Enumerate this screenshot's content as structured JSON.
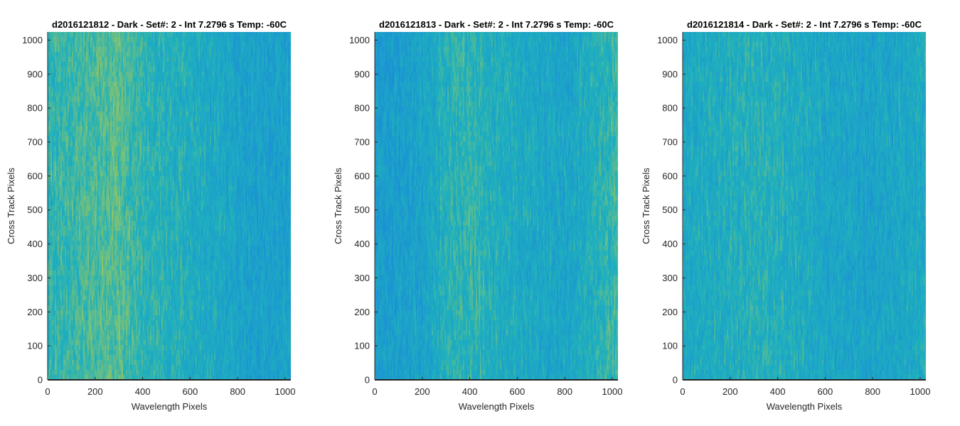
{
  "chart_data": [
    {
      "type": "heatmap",
      "title": "d2016121812 - Dark - Set#: 2 - Int 7.2796 s Temp: -60C",
      "xlabel": "Wavelength Pixels",
      "ylabel": "Cross Track Pixels",
      "xlim": [
        0,
        1024
      ],
      "ylim": [
        0,
        1024
      ],
      "xticks": [
        0,
        200,
        400,
        600,
        800,
        1000
      ],
      "yticks": [
        0,
        100,
        200,
        300,
        400,
        500,
        600,
        700,
        800,
        900,
        1000
      ],
      "colormap": "parula",
      "color_low": "#1a8fd6",
      "color_mid": "#1fb0bd",
      "color_high": "#9fc85c",
      "column_intensity": [
        [
          0,
          0.55
        ],
        [
          100,
          0.62
        ],
        [
          200,
          0.68
        ],
        [
          300,
          0.72
        ],
        [
          400,
          0.55
        ],
        [
          500,
          0.5
        ],
        [
          600,
          0.45
        ],
        [
          700,
          0.38
        ],
        [
          800,
          0.3
        ],
        [
          900,
          0.25
        ],
        [
          1024,
          0.3
        ]
      ]
    },
    {
      "type": "heatmap",
      "title": "d2016121813 - Dark - Set#: 2 - Int 7.2796 s Temp: -60C",
      "xlabel": "Wavelength Pixels",
      "ylabel": "Cross Track Pixels",
      "xlim": [
        0,
        1024
      ],
      "ylim": [
        0,
        1024
      ],
      "xticks": [
        0,
        200,
        400,
        600,
        800,
        1000
      ],
      "yticks": [
        0,
        100,
        200,
        300,
        400,
        500,
        600,
        700,
        800,
        900,
        1000
      ],
      "colormap": "parula",
      "color_low": "#1a8fd6",
      "color_mid": "#1fb0bd",
      "color_high": "#9fc85c",
      "column_intensity": [
        [
          0,
          0.2
        ],
        [
          100,
          0.22
        ],
        [
          200,
          0.3
        ],
        [
          300,
          0.52
        ],
        [
          400,
          0.55
        ],
        [
          500,
          0.45
        ],
        [
          600,
          0.4
        ],
        [
          700,
          0.35
        ],
        [
          800,
          0.32
        ],
        [
          900,
          0.45
        ],
        [
          1024,
          0.62
        ]
      ]
    },
    {
      "type": "heatmap",
      "title": "d2016121814 - Dark - Set#: 2 - Int 7.2796 s Temp: -60C",
      "xlabel": "Wavelength Pixels",
      "ylabel": "Cross Track Pixels",
      "xlim": [
        0,
        1024
      ],
      "ylim": [
        0,
        1024
      ],
      "xticks": [
        0,
        200,
        400,
        600,
        800,
        1000
      ],
      "yticks": [
        0,
        100,
        200,
        300,
        400,
        500,
        600,
        700,
        800,
        900,
        1000
      ],
      "colormap": "parula",
      "color_low": "#1a8fd6",
      "color_mid": "#1fb0bd",
      "color_high": "#9fc85c",
      "column_intensity": [
        [
          0,
          0.38
        ],
        [
          100,
          0.42
        ],
        [
          200,
          0.45
        ],
        [
          300,
          0.5
        ],
        [
          400,
          0.48
        ],
        [
          500,
          0.4
        ],
        [
          600,
          0.35
        ],
        [
          700,
          0.32
        ],
        [
          800,
          0.3
        ],
        [
          900,
          0.35
        ],
        [
          1024,
          0.42
        ]
      ]
    }
  ]
}
